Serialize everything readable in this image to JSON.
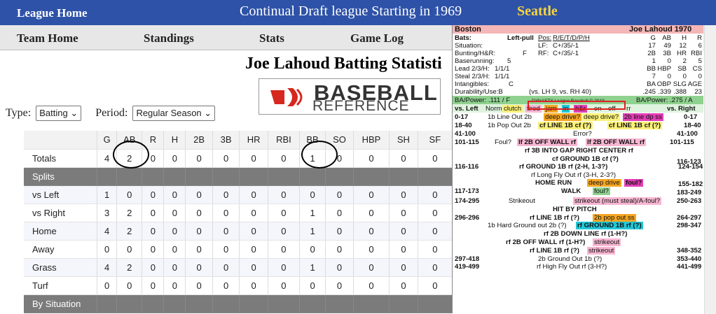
{
  "topbar": {
    "home": "League Home",
    "title": "Continual Draft league Starting in 1969",
    "team": "Seattle"
  },
  "nav": {
    "team_home": "Team Home",
    "standings": "Standings",
    "stats": "Stats",
    "game_log": "Game Log"
  },
  "page": {
    "title": "Joe Lahoud Batting Statisti"
  },
  "logo": {
    "word1": "BASEBALL",
    "word2": "REFERENCE"
  },
  "filters": {
    "type_label": "Type:",
    "type_value": "Batting",
    "period_label": "Period:",
    "period_value": "Regular Season"
  },
  "table": {
    "headers": [
      "",
      "G",
      "AB",
      "R",
      "H",
      "2B",
      "3B",
      "HR",
      "RBI",
      "BB",
      "SO",
      "HBP",
      "SH",
      "SF"
    ],
    "rows": [
      {
        "kind": "data",
        "cells": [
          "Totals",
          "4",
          "2",
          "0",
          "0",
          "0",
          "0",
          "0",
          "0",
          "1",
          "0",
          "0",
          "0",
          "0"
        ]
      },
      {
        "kind": "section",
        "cells": [
          "Splits"
        ]
      },
      {
        "kind": "data",
        "cells": [
          "vs Left",
          "1",
          "0",
          "0",
          "0",
          "0",
          "0",
          "0",
          "0",
          "0",
          "0",
          "0",
          "0",
          "0"
        ]
      },
      {
        "kind": "data",
        "cells": [
          "vs Right",
          "3",
          "2",
          "0",
          "0",
          "0",
          "0",
          "0",
          "0",
          "1",
          "0",
          "0",
          "0",
          "0"
        ]
      },
      {
        "kind": "data",
        "cells": [
          "Home",
          "4",
          "2",
          "0",
          "0",
          "0",
          "0",
          "0",
          "0",
          "1",
          "0",
          "0",
          "0",
          "0"
        ]
      },
      {
        "kind": "data",
        "cells": [
          "Away",
          "0",
          "0",
          "0",
          "0",
          "0",
          "0",
          "0",
          "0",
          "0",
          "0",
          "0",
          "0",
          "0"
        ]
      },
      {
        "kind": "data",
        "cells": [
          "Grass",
          "4",
          "2",
          "0",
          "0",
          "0",
          "0",
          "0",
          "0",
          "1",
          "0",
          "0",
          "0",
          "0"
        ]
      },
      {
        "kind": "data",
        "cells": [
          "Turf",
          "0",
          "0",
          "0",
          "0",
          "0",
          "0",
          "0",
          "0",
          "0",
          "0",
          "0",
          "0",
          "0"
        ]
      },
      {
        "kind": "section",
        "cells": [
          "By Situation"
        ]
      }
    ]
  },
  "card": {
    "team": "Boston",
    "player": "Joe Lahoud 1970",
    "bats_label": "Bats:",
    "bats_value": "Left-pull",
    "pos_label": "Pos:",
    "pos_value": "R/E/T/D/P/H",
    "hdr1": [
      "G",
      "AB",
      "H",
      "R"
    ],
    "val1": [
      "17",
      "49",
      "12",
      "6"
    ],
    "situation": "Situation:",
    "lf": "LF:",
    "lf_val": "C+/35/-1",
    "bunting": "Bunting/H&R:",
    "bunting_val": "F",
    "rf": "RF:",
    "rf_val": "C+/35/-1",
    "hdr2": [
      "2B",
      "3B",
      "HR",
      "RBI"
    ],
    "val2": [
      "1",
      "0",
      "2",
      "5"
    ],
    "baserunning": "Baserunning:",
    "baserunning_val": "5",
    "lead": "Lead 2/3/H:",
    "lead_val": "1/1/1",
    "hdr3": [
      "BB",
      "HBP",
      "SB",
      "CS"
    ],
    "steal": "Steal 2/3/H:",
    "steal_val": "1/1/1",
    "val3": [
      "7",
      "0",
      "0",
      "0"
    ],
    "intangibles": "Intangibles:",
    "intangibles_val": "C",
    "hdr4": [
      "BA",
      "OBP",
      "SLG",
      "AGE"
    ],
    "durability": "Durability/Use:B",
    "durability_val": "(vs. LH 9, vs. RH 40)",
    "val4": [
      ".245",
      ".339",
      ".388",
      "23"
    ],
    "bapower_l": "BA/Power: .111 / F",
    "dynasty": "DYNASTY League Baseball © 2019",
    "bapower_r": "BA/Power: .275 / A",
    "vs_left": "vs. Left",
    "vs_right": "vs. Right",
    "tags": [
      "Norm",
      "clutch",
      "tired",
      "jam",
      "in",
      "h&r",
      "on",
      "off",
      "rr"
    ],
    "lines": [
      {
        "l": "0-17",
        "m": "1b Line Out 2b",
        "a": "deep drive?",
        "b": "deep drive?",
        "c": "2b line dp ss",
        "r": "0-17"
      },
      {
        "l": "18-40",
        "m": "1b Pop Out 2b",
        "a": "cf LINE 1B cf (?)",
        "b": "cf LINE 1B cf (?)",
        "r": "18-40"
      },
      {
        "l": "41-100",
        "m": "Error?",
        "r": "41-100"
      },
      {
        "l": "101-115",
        "m": "Foul?",
        "a": "lf 2B OFF WALL rf",
        "b": "lf 2B OFF WALL rf",
        "r": "101-115"
      }
    ],
    "l_3b": "rf 3B INTO GAP RIGHT CENTER rf",
    "l_cf": "cf GROUND 1B cf (?)",
    "r_cf": "116-123",
    "l_116": "116-116",
    "m_116": "rf GROUND 1B rf (2-H, 1-3?)",
    "r_116": "124-154",
    "m_fly": "rf Long Fly Out rf (3-H, 2-3?)",
    "hr": "HOME RUN",
    "hr_a": "deep drive",
    "hr_b": "foul?",
    "hr_r": "155-182",
    "l_117": "117-173",
    "walk": "WALK",
    "walk_b": "foul?",
    "walk_r": "183-249",
    "l_174": "174-295",
    "so": "Strikeout",
    "so_b": "strikeout (must steal)/A-foul?",
    "so_r": "250-263",
    "hbp": "HIT BY PITCH",
    "l_296": "296-296",
    "line1b": "rf LINE 1B rf (?)",
    "popout": "2b pop out ss",
    "r_264": "264-297",
    "hg": "1b Hard Ground out 2b (?)",
    "hg_b": "rf GROUND 1B rf (?)",
    "r_298": "298-347",
    "dl": "rf 2B DOWN LINE rf (1-H?)",
    "ow": "rf 2B OFF WALL rf (1-H?)",
    "ow_b": "strikeout",
    "l1b": "rf LINE 1B rf (?)",
    "l1b_b": "strikeout",
    "r_348": "348-352",
    "l_297": "297-418",
    "go": "2b Ground Out 1b (?)",
    "r_353": "353-440",
    "l_419": "419-499",
    "hf": "rf High Fly Out rf (3-H?)",
    "r_441": "441-499"
  },
  "colors": {
    "topbar": "#2e52a8",
    "accent_yellow": "#f6d53b",
    "section_gray": "#7b7b7b",
    "card_header_pink": "#f4b6b6",
    "card_green": "#8fd18f",
    "highlight_yellow": "#fbf178",
    "magenta": "#e23fb5",
    "orange": "#f5a623",
    "cyan": "#22c7d8",
    "pink": "#f7b6d2"
  }
}
